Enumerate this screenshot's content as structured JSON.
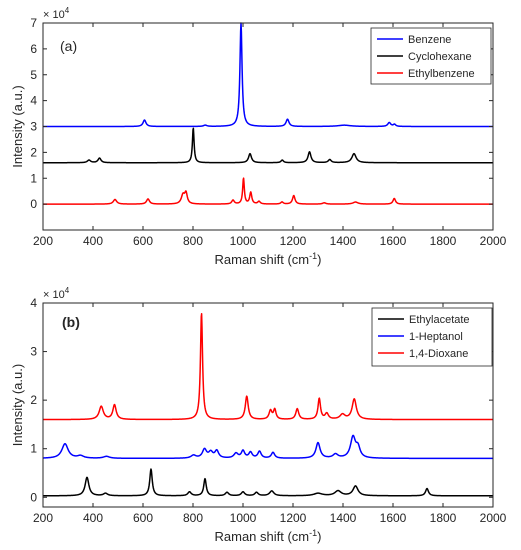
{
  "chart_data": [
    {
      "type": "line",
      "panel_label": "(a)",
      "xlabel": "Raman shift (cm",
      "xlabel_sup": "-1",
      "xlabel_end": ")",
      "ylabel": "Intensity (a.u.)",
      "exponent_base": "× 10",
      "exponent_power": "4",
      "xlim": [
        200,
        2000
      ],
      "ylim": [
        -1,
        7
      ],
      "xticks": [
        200,
        400,
        600,
        800,
        1000,
        1200,
        1400,
        1600,
        1800,
        2000
      ],
      "yticks": [
        0,
        1,
        2,
        3,
        4,
        5,
        6,
        7
      ],
      "legend_position": "top-right",
      "grid": false,
      "series": [
        {
          "name": "Benzene",
          "color": "#0000ff",
          "baseline": 3.0,
          "peaks": [
            [
              606,
              0.25,
              7
            ],
            [
              849,
              0.05,
              8
            ],
            [
              992,
              4.0,
              5
            ],
            [
              1178,
              0.28,
              7
            ],
            [
              1405,
              0.05,
              30
            ],
            [
              1585,
              0.15,
              7
            ],
            [
              1606,
              0.08,
              6
            ]
          ]
        },
        {
          "name": "Cyclohexane",
          "color": "#000000",
          "baseline": 1.6,
          "peaks": [
            [
              384,
              0.1,
              8
            ],
            [
              426,
              0.18,
              7
            ],
            [
              801,
              1.35,
              4
            ],
            [
              1028,
              0.35,
              7
            ],
            [
              1157,
              0.1,
              6
            ],
            [
              1266,
              0.42,
              7
            ],
            [
              1347,
              0.12,
              7
            ],
            [
              1444,
              0.35,
              10
            ]
          ]
        },
        {
          "name": "Ethylbenzene",
          "color": "#ff0000",
          "baseline": 0.0,
          "peaks": [
            [
              488,
              0.18,
              8
            ],
            [
              620,
              0.2,
              7
            ],
            [
              760,
              0.35,
              8
            ],
            [
              772,
              0.4,
              6
            ],
            [
              960,
              0.15,
              6
            ],
            [
              1002,
              1.0,
              4
            ],
            [
              1031,
              0.45,
              5
            ],
            [
              1064,
              0.1,
              6
            ],
            [
              1156,
              0.08,
              6
            ],
            [
              1203,
              0.33,
              6
            ],
            [
              1325,
              0.05,
              8
            ],
            [
              1450,
              0.08,
              12
            ],
            [
              1605,
              0.22,
              6
            ]
          ]
        }
      ]
    },
    {
      "type": "line",
      "panel_label": "(b)",
      "xlabel": "Raman shift (cm",
      "xlabel_sup": "-1",
      "xlabel_end": ")",
      "ylabel": "Intensity (a.u.)",
      "exponent_base": "× 10",
      "exponent_power": "4",
      "xlim": [
        200,
        2000
      ],
      "ylim": [
        -0.2,
        4
      ],
      "xticks": [
        200,
        400,
        600,
        800,
        1000,
        1200,
        1400,
        1600,
        1800,
        2000
      ],
      "yticks": [
        0,
        1,
        2,
        3,
        4
      ],
      "legend_position": "top-right",
      "grid": false,
      "series": [
        {
          "name": "Ethylacetate",
          "color": "#000000",
          "baseline": 0.03,
          "peaks": [
            [
              376,
              0.38,
              9
            ],
            [
              450,
              0.05,
              10
            ],
            [
              632,
              0.55,
              6
            ],
            [
              786,
              0.08,
              8
            ],
            [
              848,
              0.35,
              6
            ],
            [
              936,
              0.07,
              8
            ],
            [
              1000,
              0.08,
              8
            ],
            [
              1054,
              0.07,
              8
            ],
            [
              1115,
              0.1,
              10
            ],
            [
              1300,
              0.05,
              20
            ],
            [
              1380,
              0.1,
              15
            ],
            [
              1450,
              0.2,
              12
            ],
            [
              1736,
              0.15,
              7
            ]
          ]
        },
        {
          "name": "1-Heptanol",
          "color": "#0000ff",
          "baseline": 0.8,
          "peaks": [
            [
              288,
              0.3,
              15
            ],
            [
              350,
              0.05,
              15
            ],
            [
              454,
              0.04,
              15
            ],
            [
              802,
              0.06,
              12
            ],
            [
              846,
              0.18,
              10
            ],
            [
              871,
              0.12,
              10
            ],
            [
              895,
              0.15,
              9
            ],
            [
              972,
              0.1,
              10
            ],
            [
              1000,
              0.15,
              8
            ],
            [
              1030,
              0.12,
              8
            ],
            [
              1066,
              0.14,
              8
            ],
            [
              1120,
              0.12,
              8
            ],
            [
              1300,
              0.32,
              10
            ],
            [
              1370,
              0.08,
              12
            ],
            [
              1440,
              0.43,
              12
            ],
            [
              1460,
              0.2,
              10
            ]
          ]
        },
        {
          "name": "1,4-Dioxane",
          "color": "#ff0000",
          "baseline": 1.6,
          "peaks": [
            [
              433,
              0.27,
              10
            ],
            [
              486,
              0.3,
              8
            ],
            [
              834,
              2.2,
              5
            ],
            [
              1015,
              0.48,
              7
            ],
            [
              1110,
              0.18,
              7
            ],
            [
              1127,
              0.2,
              6
            ],
            [
              1217,
              0.22,
              7
            ],
            [
              1305,
              0.43,
              6
            ],
            [
              1335,
              0.12,
              8
            ],
            [
              1398,
              0.1,
              12
            ],
            [
              1445,
              0.42,
              10
            ]
          ]
        }
      ]
    }
  ]
}
